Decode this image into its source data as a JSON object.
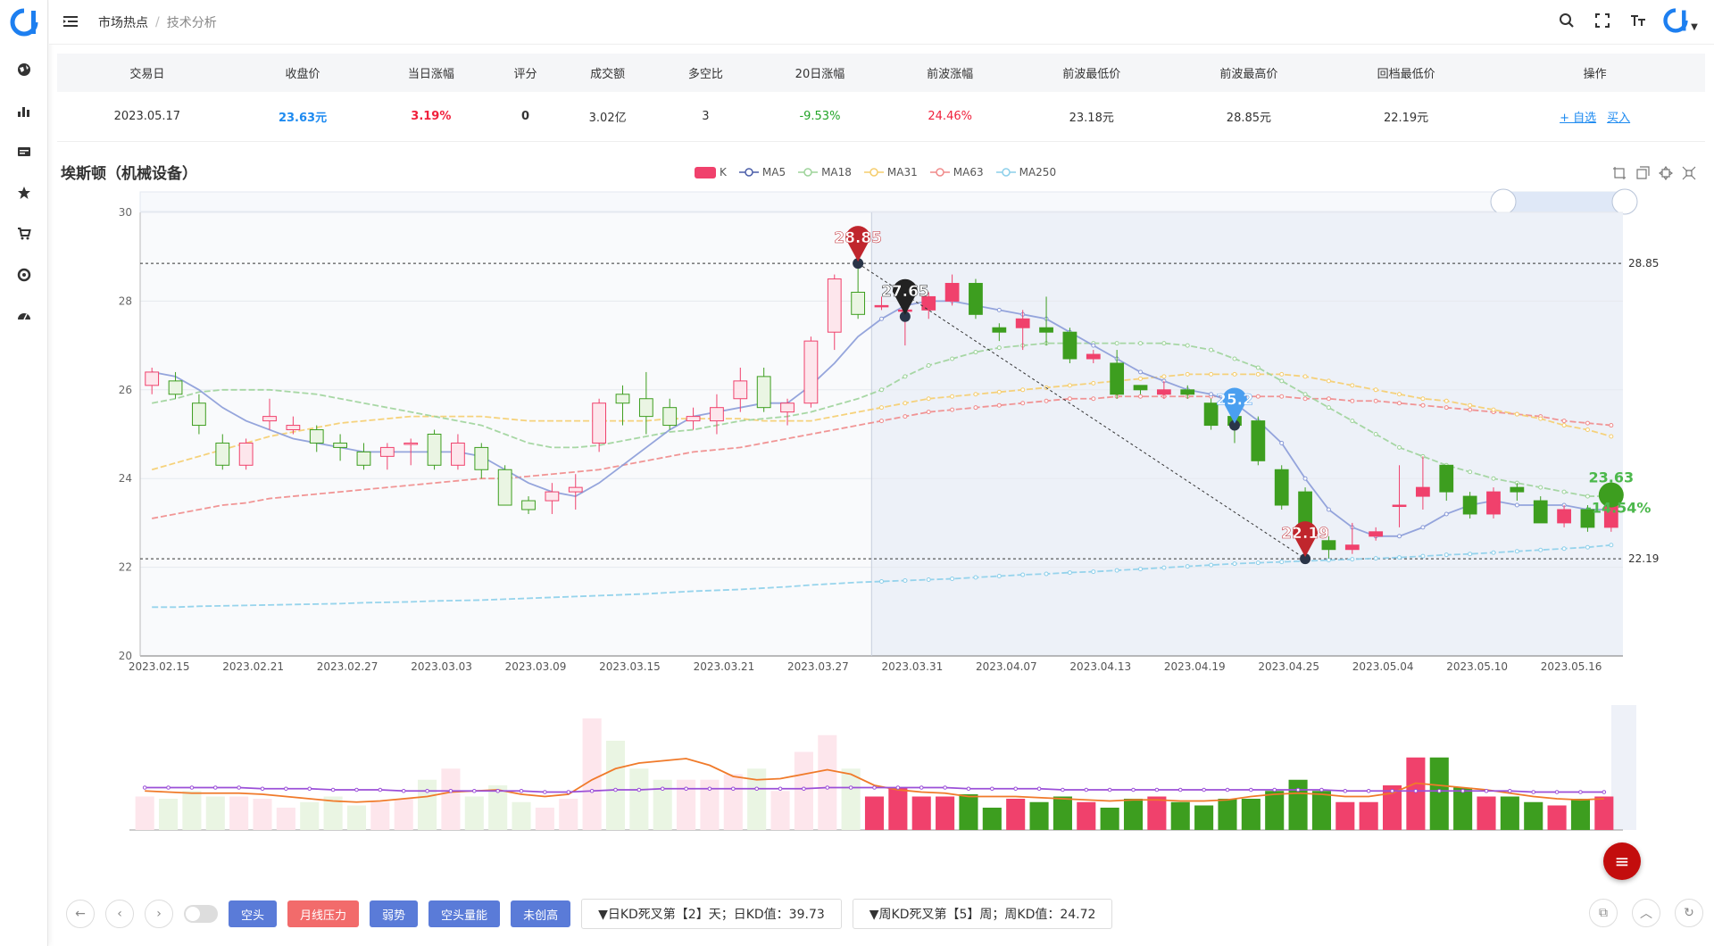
{
  "breadcrumb": {
    "home": "市场热点",
    "current": "技术分析"
  },
  "table": {
    "headers": [
      "交易日",
      "收盘价",
      "当日涨幅",
      "评分",
      "成交额",
      "多空比",
      "20日涨幅",
      "前波涨幅",
      "前波最低价",
      "前波最高价",
      "回档最低价",
      "操作"
    ],
    "row": {
      "date": "2023.05.17",
      "close": "23.63元",
      "change": "3.19%",
      "score": "0",
      "amount": "3.02亿",
      "ratio": "3",
      "chg20": "-9.53%",
      "wave_chg": "24.46%",
      "wave_low": "23.18元",
      "wave_high": "28.85元",
      "pullback_low": "22.19元",
      "op_watch": "+ 自选",
      "op_buy": "买入"
    }
  },
  "chart_title": "埃斯顿（机械设备）",
  "legend": [
    "K",
    "MA5",
    "MA18",
    "MA31",
    "MA63",
    "MA250"
  ],
  "colors": {
    "up": "#f0416c",
    "down": "#3d9e1f",
    "ma5": "#8a9bd8",
    "ma18": "#9dd39a",
    "ma31": "#f5cd6d",
    "ma63": "#f08a8a",
    "ma250": "#8ccfea",
    "vol_line1": "#f07a2a",
    "vol_line2": "#9b4fd8"
  },
  "bottom": {
    "tags": [
      "空头",
      "月线压力",
      "弱势",
      "空头量能",
      "未创高"
    ],
    "kd_day": "▼日KD死叉第【2】天；日KD值：39.73",
    "kd_week": "▼周KD死叉第【5】周；周KD值：24.72"
  },
  "chart_data": {
    "type": "candlestick",
    "title": "埃斯顿（机械设备）",
    "x_ticks": [
      "2023.02.15",
      "2023.02.21",
      "2023.02.27",
      "2023.03.03",
      "2023.03.09",
      "2023.03.15",
      "2023.03.21",
      "2023.03.27",
      "2023.03.31",
      "2023.04.07",
      "2023.04.13",
      "2023.04.19",
      "2023.04.25",
      "2023.05.04",
      "2023.05.10",
      "2023.05.16"
    ],
    "ylim": [
      20,
      30
    ],
    "y_ticks": [
      20,
      22,
      24,
      26,
      28,
      30
    ],
    "hlines": [
      {
        "value": 28.85,
        "label": "28.85"
      },
      {
        "value": 22.19,
        "label": "22.19"
      }
    ],
    "marks": [
      {
        "label": "28.85",
        "index": 30,
        "value": 28.85,
        "color": "#c0262d"
      },
      {
        "label": "27.65",
        "index": 32,
        "value": 27.65,
        "color": "#222"
      },
      {
        "label": "25.2",
        "index": 46,
        "value": 25.2,
        "color": "#4a9ff0"
      },
      {
        "label": "22.19",
        "index": 49,
        "value": 22.19,
        "color": "#c0262d"
      }
    ],
    "end_labels": [
      {
        "text": "23.63",
        "color": "#4cb84c"
      },
      {
        "text": "-14.54%",
        "color": "#4cb84c"
      }
    ],
    "candles": [
      [
        26.1,
        26.4,
        26.5,
        25.9
      ],
      [
        26.2,
        25.9,
        26.4,
        25.8
      ],
      [
        25.7,
        25.2,
        25.9,
        25.0
      ],
      [
        24.8,
        24.3,
        25.0,
        24.2
      ],
      [
        24.3,
        24.8,
        24.9,
        24.2
      ],
      [
        25.3,
        25.4,
        25.8,
        25.1
      ],
      [
        25.1,
        25.2,
        25.4,
        25.0
      ],
      [
        25.1,
        24.8,
        25.2,
        24.6
      ],
      [
        24.8,
        24.7,
        25.0,
        24.4
      ],
      [
        24.6,
        24.3,
        24.8,
        24.2
      ],
      [
        24.5,
        24.7,
        24.8,
        24.2
      ],
      [
        24.8,
        24.8,
        24.9,
        24.3
      ],
      [
        25.0,
        24.3,
        25.1,
        24.2
      ],
      [
        24.3,
        24.8,
        25.0,
        24.2
      ],
      [
        24.7,
        24.2,
        24.8,
        24.0
      ],
      [
        24.2,
        23.4,
        24.3,
        23.4
      ],
      [
        23.5,
        23.3,
        23.6,
        23.2
      ],
      [
        23.5,
        23.7,
        23.9,
        23.2
      ],
      [
        23.7,
        23.8,
        24.1,
        23.3
      ],
      [
        24.8,
        25.7,
        25.8,
        24.6
      ],
      [
        25.9,
        25.7,
        26.1,
        25.2
      ],
      [
        25.8,
        25.4,
        26.4,
        25.0
      ],
      [
        25.6,
        25.2,
        25.8,
        25.1
      ],
      [
        25.3,
        25.4,
        25.6,
        25.1
      ],
      [
        25.3,
        25.6,
        25.9,
        25.0
      ],
      [
        25.8,
        26.2,
        26.5,
        25.5
      ],
      [
        26.3,
        25.6,
        26.5,
        25.5
      ],
      [
        25.5,
        25.7,
        25.8,
        25.2
      ],
      [
        25.7,
        27.1,
        27.2,
        25.6
      ],
      [
        27.3,
        28.5,
        28.6,
        26.9
      ],
      [
        28.2,
        27.7,
        28.8,
        27.6
      ],
      [
        27.9,
        27.9,
        28.1,
        27.8
      ],
      [
        27.8,
        27.8,
        28.2,
        27.0
      ],
      [
        27.8,
        28.1,
        28.2,
        27.6
      ],
      [
        28.0,
        28.4,
        28.6,
        27.9
      ],
      [
        28.4,
        27.7,
        28.5,
        27.6
      ],
      [
        27.4,
        27.3,
        27.5,
        27.1
      ],
      [
        27.4,
        27.6,
        27.8,
        26.9
      ],
      [
        27.4,
        27.3,
        28.1,
        27.0
      ],
      [
        27.3,
        26.7,
        27.4,
        26.6
      ],
      [
        26.7,
        26.8,
        26.9,
        26.6
      ],
      [
        26.6,
        25.9,
        26.9,
        25.8
      ],
      [
        26.1,
        26.0,
        26.1,
        25.9
      ],
      [
        25.9,
        26.0,
        26.2,
        25.8
      ],
      [
        26.0,
        25.9,
        26.1,
        25.8
      ],
      [
        25.7,
        25.2,
        25.8,
        25.1
      ],
      [
        25.4,
        25.2,
        25.5,
        24.8
      ],
      [
        25.3,
        24.4,
        25.4,
        24.3
      ],
      [
        24.2,
        23.4,
        24.3,
        23.3
      ],
      [
        23.7,
        22.6,
        23.8,
        22.4
      ],
      [
        22.6,
        22.4,
        22.7,
        22.2
      ],
      [
        22.4,
        22.5,
        23.0,
        22.3
      ],
      [
        22.7,
        22.8,
        22.9,
        22.6
      ],
      [
        23.4,
        23.4,
        24.3,
        22.9
      ],
      [
        23.6,
        23.8,
        24.5,
        23.3
      ],
      [
        24.3,
        23.7,
        24.3,
        23.5
      ],
      [
        23.6,
        23.2,
        23.7,
        23.1
      ],
      [
        23.2,
        23.7,
        23.8,
        23.1
      ],
      [
        23.8,
        23.7,
        23.9,
        23.5
      ],
      [
        23.5,
        23.0,
        23.6,
        23.0
      ],
      [
        23.0,
        23.3,
        23.4,
        22.9
      ],
      [
        23.3,
        22.9,
        23.4,
        22.8
      ],
      [
        22.9,
        23.6,
        23.9,
        22.8
      ]
    ],
    "ma5": [
      26.4,
      26.3,
      26.0,
      25.6,
      25.3,
      25.1,
      24.9,
      24.8,
      24.7,
      24.6,
      24.6,
      24.6,
      24.6,
      24.6,
      24.5,
      24.2,
      23.9,
      23.7,
      23.6,
      23.9,
      24.3,
      24.7,
      25.1,
      25.4,
      25.5,
      25.6,
      25.7,
      25.7,
      26.1,
      26.6,
      27.2,
      27.6,
      27.9,
      28.0,
      28.0,
      27.9,
      27.8,
      27.7,
      27.6,
      27.3,
      27.0,
      26.7,
      26.4,
      26.2,
      26.0,
      25.9,
      25.7,
      25.3,
      24.8,
      24.0,
      23.3,
      22.9,
      22.7,
      22.7,
      22.9,
      23.2,
      23.4,
      23.5,
      23.4,
      23.4,
      23.4,
      23.3,
      23.3
    ],
    "ma18": [
      25.7,
      25.8,
      25.95,
      26.0,
      26.0,
      26.0,
      25.95,
      25.9,
      25.8,
      25.7,
      25.6,
      25.5,
      25.4,
      25.3,
      25.2,
      25.0,
      24.8,
      24.7,
      24.7,
      24.75,
      24.85,
      24.95,
      25.05,
      25.1,
      25.2,
      25.3,
      25.35,
      25.4,
      25.5,
      25.65,
      25.8,
      26.0,
      26.3,
      26.55,
      26.7,
      26.85,
      26.95,
      27.0,
      27.05,
      27.05,
      27.05,
      27.05,
      27.05,
      27.05,
      27.0,
      26.9,
      26.7,
      26.5,
      26.2,
      25.9,
      25.6,
      25.3,
      25.0,
      24.7,
      24.5,
      24.3,
      24.15,
      24.0,
      23.9,
      23.8,
      23.7,
      23.6,
      23.6
    ],
    "ma31": [
      24.2,
      24.35,
      24.5,
      24.65,
      24.8,
      24.95,
      25.05,
      25.15,
      25.25,
      25.3,
      25.35,
      25.4,
      25.4,
      25.4,
      25.4,
      25.35,
      25.3,
      25.3,
      25.3,
      25.3,
      25.3,
      25.3,
      25.35,
      25.35,
      25.35,
      25.35,
      25.3,
      25.3,
      25.3,
      25.4,
      25.5,
      25.6,
      25.7,
      25.8,
      25.85,
      25.9,
      25.95,
      26.0,
      26.05,
      26.1,
      26.15,
      26.2,
      26.25,
      26.3,
      26.35,
      26.35,
      26.35,
      26.35,
      26.35,
      26.3,
      26.2,
      26.1,
      26.0,
      25.9,
      25.8,
      25.75,
      25.65,
      25.55,
      25.45,
      25.35,
      25.2,
      25.1,
      24.95
    ],
    "ma63": [
      23.1,
      23.2,
      23.3,
      23.4,
      23.45,
      23.55,
      23.6,
      23.65,
      23.7,
      23.75,
      23.8,
      23.85,
      23.9,
      23.95,
      24.0,
      24.0,
      24.05,
      24.1,
      24.15,
      24.2,
      24.3,
      24.4,
      24.5,
      24.6,
      24.65,
      24.7,
      24.8,
      24.9,
      25.0,
      25.1,
      25.2,
      25.3,
      25.4,
      25.5,
      25.55,
      25.6,
      25.65,
      25.7,
      25.75,
      25.8,
      25.8,
      25.85,
      25.85,
      25.85,
      25.85,
      25.85,
      25.85,
      25.85,
      25.85,
      25.8,
      25.8,
      25.75,
      25.75,
      25.7,
      25.65,
      25.6,
      25.55,
      25.5,
      25.45,
      25.4,
      25.3,
      25.25,
      25.2
    ],
    "ma250": [
      21.1,
      21.1,
      21.12,
      21.13,
      21.14,
      21.15,
      21.16,
      21.17,
      21.18,
      21.2,
      21.21,
      21.22,
      21.24,
      21.25,
      21.26,
      21.28,
      21.3,
      21.32,
      21.34,
      21.36,
      21.38,
      21.4,
      21.43,
      21.46,
      21.48,
      21.5,
      21.53,
      21.56,
      21.6,
      21.63,
      21.66,
      21.68,
      21.7,
      21.72,
      21.74,
      21.77,
      21.8,
      21.83,
      21.85,
      21.88,
      21.9,
      21.93,
      21.96,
      21.99,
      22.02,
      22.05,
      22.08,
      22.1,
      22.12,
      22.14,
      22.16,
      22.18,
      22.2,
      22.22,
      22.25,
      22.28,
      22.3,
      22.33,
      22.36,
      22.39,
      22.42,
      22.45,
      22.5
    ],
    "volume": [
      0.3,
      0.28,
      0.35,
      0.3,
      0.3,
      0.28,
      0.2,
      0.25,
      0.3,
      0.22,
      0.25,
      0.28,
      0.45,
      0.55,
      0.3,
      0.4,
      0.25,
      0.2,
      0.28,
      1.0,
      0.8,
      0.55,
      0.45,
      0.45,
      0.45,
      0.5,
      0.55,
      0.35,
      0.7,
      0.85,
      0.55,
      0.3,
      0.38,
      0.3,
      0.3,
      0.32,
      0.2,
      0.28,
      0.25,
      0.3,
      0.25,
      0.2,
      0.28,
      0.3,
      0.25,
      0.22,
      0.28,
      0.28,
      0.35,
      0.45,
      0.35,
      0.25,
      0.25,
      0.4,
      0.65,
      0.65,
      0.38,
      0.3,
      0.3,
      0.25,
      0.22,
      0.28,
      0.3
    ],
    "vol_line1": [
      0.35,
      0.34,
      0.33,
      0.33,
      0.33,
      0.32,
      0.3,
      0.28,
      0.26,
      0.25,
      0.26,
      0.28,
      0.3,
      0.34,
      0.35,
      0.36,
      0.32,
      0.3,
      0.32,
      0.45,
      0.55,
      0.6,
      0.62,
      0.64,
      0.58,
      0.48,
      0.45,
      0.46,
      0.5,
      0.54,
      0.5,
      0.4,
      0.36,
      0.34,
      0.33,
      0.3,
      0.3,
      0.3,
      0.29,
      0.28,
      0.27,
      0.26,
      0.27,
      0.27,
      0.26,
      0.26,
      0.27,
      0.3,
      0.32,
      0.33,
      0.32,
      0.3,
      0.3,
      0.33,
      0.42,
      0.4,
      0.38,
      0.36,
      0.33,
      0.3,
      0.28,
      0.27,
      0.28
    ],
    "vol_line2": [
      0.38,
      0.38,
      0.38,
      0.38,
      0.38,
      0.37,
      0.37,
      0.37,
      0.36,
      0.36,
      0.36,
      0.35,
      0.35,
      0.35,
      0.35,
      0.35,
      0.35,
      0.34,
      0.34,
      0.35,
      0.36,
      0.36,
      0.37,
      0.37,
      0.37,
      0.37,
      0.37,
      0.37,
      0.37,
      0.38,
      0.38,
      0.38,
      0.38,
      0.38,
      0.38,
      0.37,
      0.37,
      0.37,
      0.37,
      0.36,
      0.36,
      0.36,
      0.36,
      0.36,
      0.36,
      0.36,
      0.36,
      0.36,
      0.36,
      0.36,
      0.36,
      0.35,
      0.35,
      0.35,
      0.35,
      0.35,
      0.35,
      0.35,
      0.35,
      0.34,
      0.34,
      0.34,
      0.34
    ]
  }
}
